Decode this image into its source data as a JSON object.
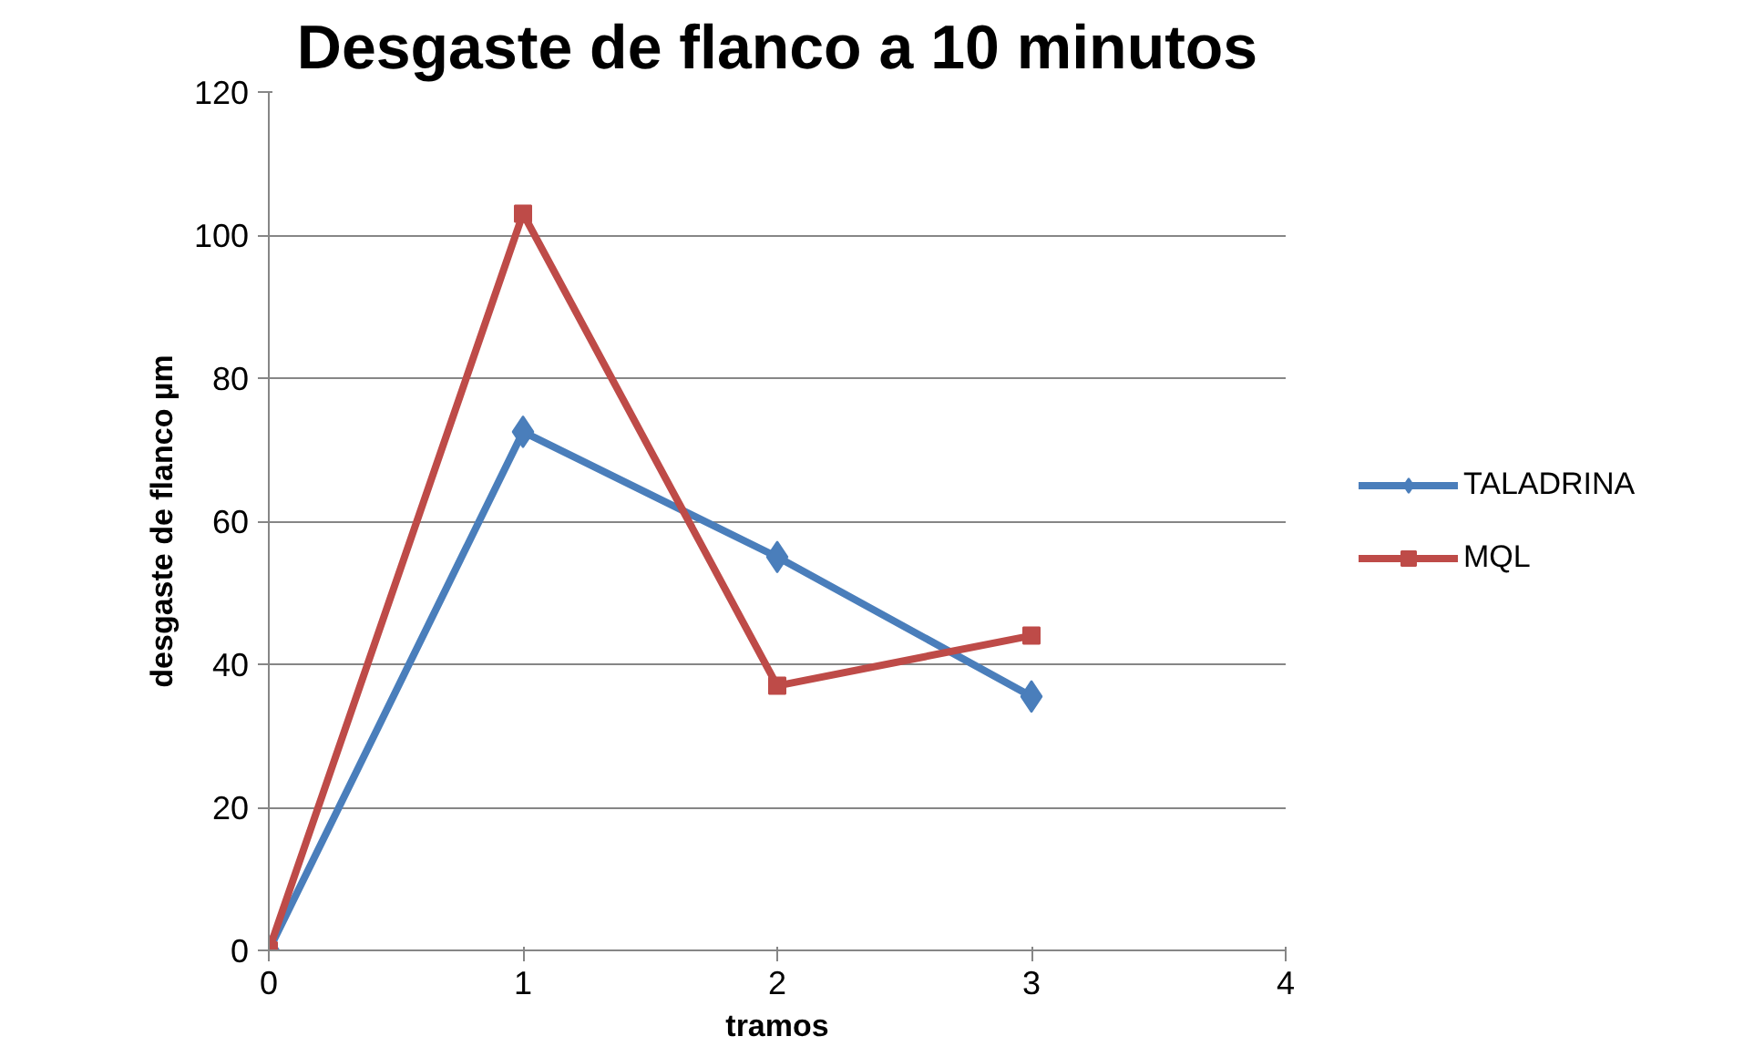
{
  "chart_data": {
    "type": "line",
    "title": "Desgaste de flanco a 10 minutos",
    "xlabel": "tramos",
    "ylabel": "desgaste de flanco µm",
    "x": [
      0,
      1,
      2,
      3
    ],
    "xlim": [
      0,
      4
    ],
    "xticks": [
      0,
      1,
      2,
      3,
      4
    ],
    "ylim": [
      0,
      120
    ],
    "yticks": [
      0,
      20,
      40,
      60,
      80,
      100,
      120
    ],
    "grid": "y",
    "legend": "right",
    "line_style": "solid",
    "series": [
      {
        "name": "TALADRINA",
        "color": "#4a7ebb",
        "marker": "diamond",
        "values": [
          0,
          72.5,
          55,
          35.5
        ]
      },
      {
        "name": "MQL",
        "color": "#be4b48",
        "marker": "square",
        "values": [
          0,
          103,
          37,
          44
        ]
      }
    ]
  }
}
